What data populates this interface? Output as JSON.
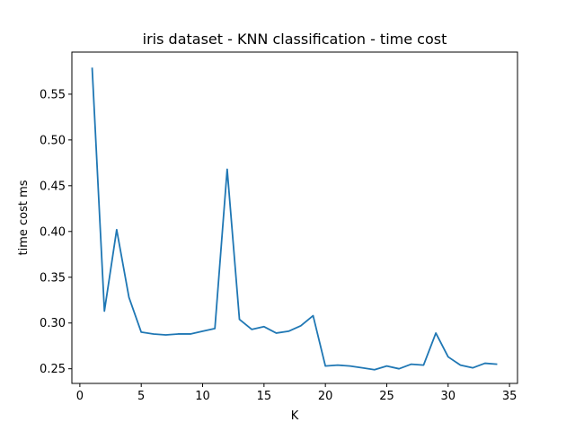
{
  "chart_data": {
    "type": "line",
    "title": "iris dataset - KNN classification - time cost",
    "xlabel": "K",
    "ylabel": "time cost ms",
    "xlim": [
      -0.65,
      35.65
    ],
    "ylim": [
      0.234,
      0.596
    ],
    "xticks": [
      0,
      5,
      10,
      15,
      20,
      25,
      30,
      35
    ],
    "yticks": [
      0.25,
      0.3,
      0.35,
      0.4,
      0.45,
      0.5,
      0.55
    ],
    "xtick_labels": [
      "0",
      "5",
      "10",
      "15",
      "20",
      "25",
      "30",
      "35"
    ],
    "ytick_labels": [
      "0.25",
      "0.30",
      "0.35",
      "0.40",
      "0.45",
      "0.50",
      "0.55"
    ],
    "grid": false,
    "line_color": "#1f77b4",
    "series": [
      {
        "x": [
          1,
          2,
          3,
          4,
          5,
          6,
          7,
          8,
          9,
          10,
          11,
          12,
          13,
          14,
          15,
          16,
          17,
          18,
          19,
          20,
          21,
          22,
          23,
          24,
          25,
          26,
          27,
          28,
          29,
          30,
          31,
          32,
          33,
          34
        ],
        "values": [
          0.579,
          0.313,
          0.402,
          0.328,
          0.29,
          0.288,
          0.287,
          0.288,
          0.288,
          0.291,
          0.294,
          0.468,
          0.304,
          0.293,
          0.296,
          0.289,
          0.291,
          0.297,
          0.308,
          0.253,
          0.254,
          0.253,
          0.251,
          0.249,
          0.253,
          0.25,
          0.255,
          0.254,
          0.289,
          0.263,
          0.254,
          0.251,
          0.256,
          0.255
        ]
      }
    ]
  }
}
